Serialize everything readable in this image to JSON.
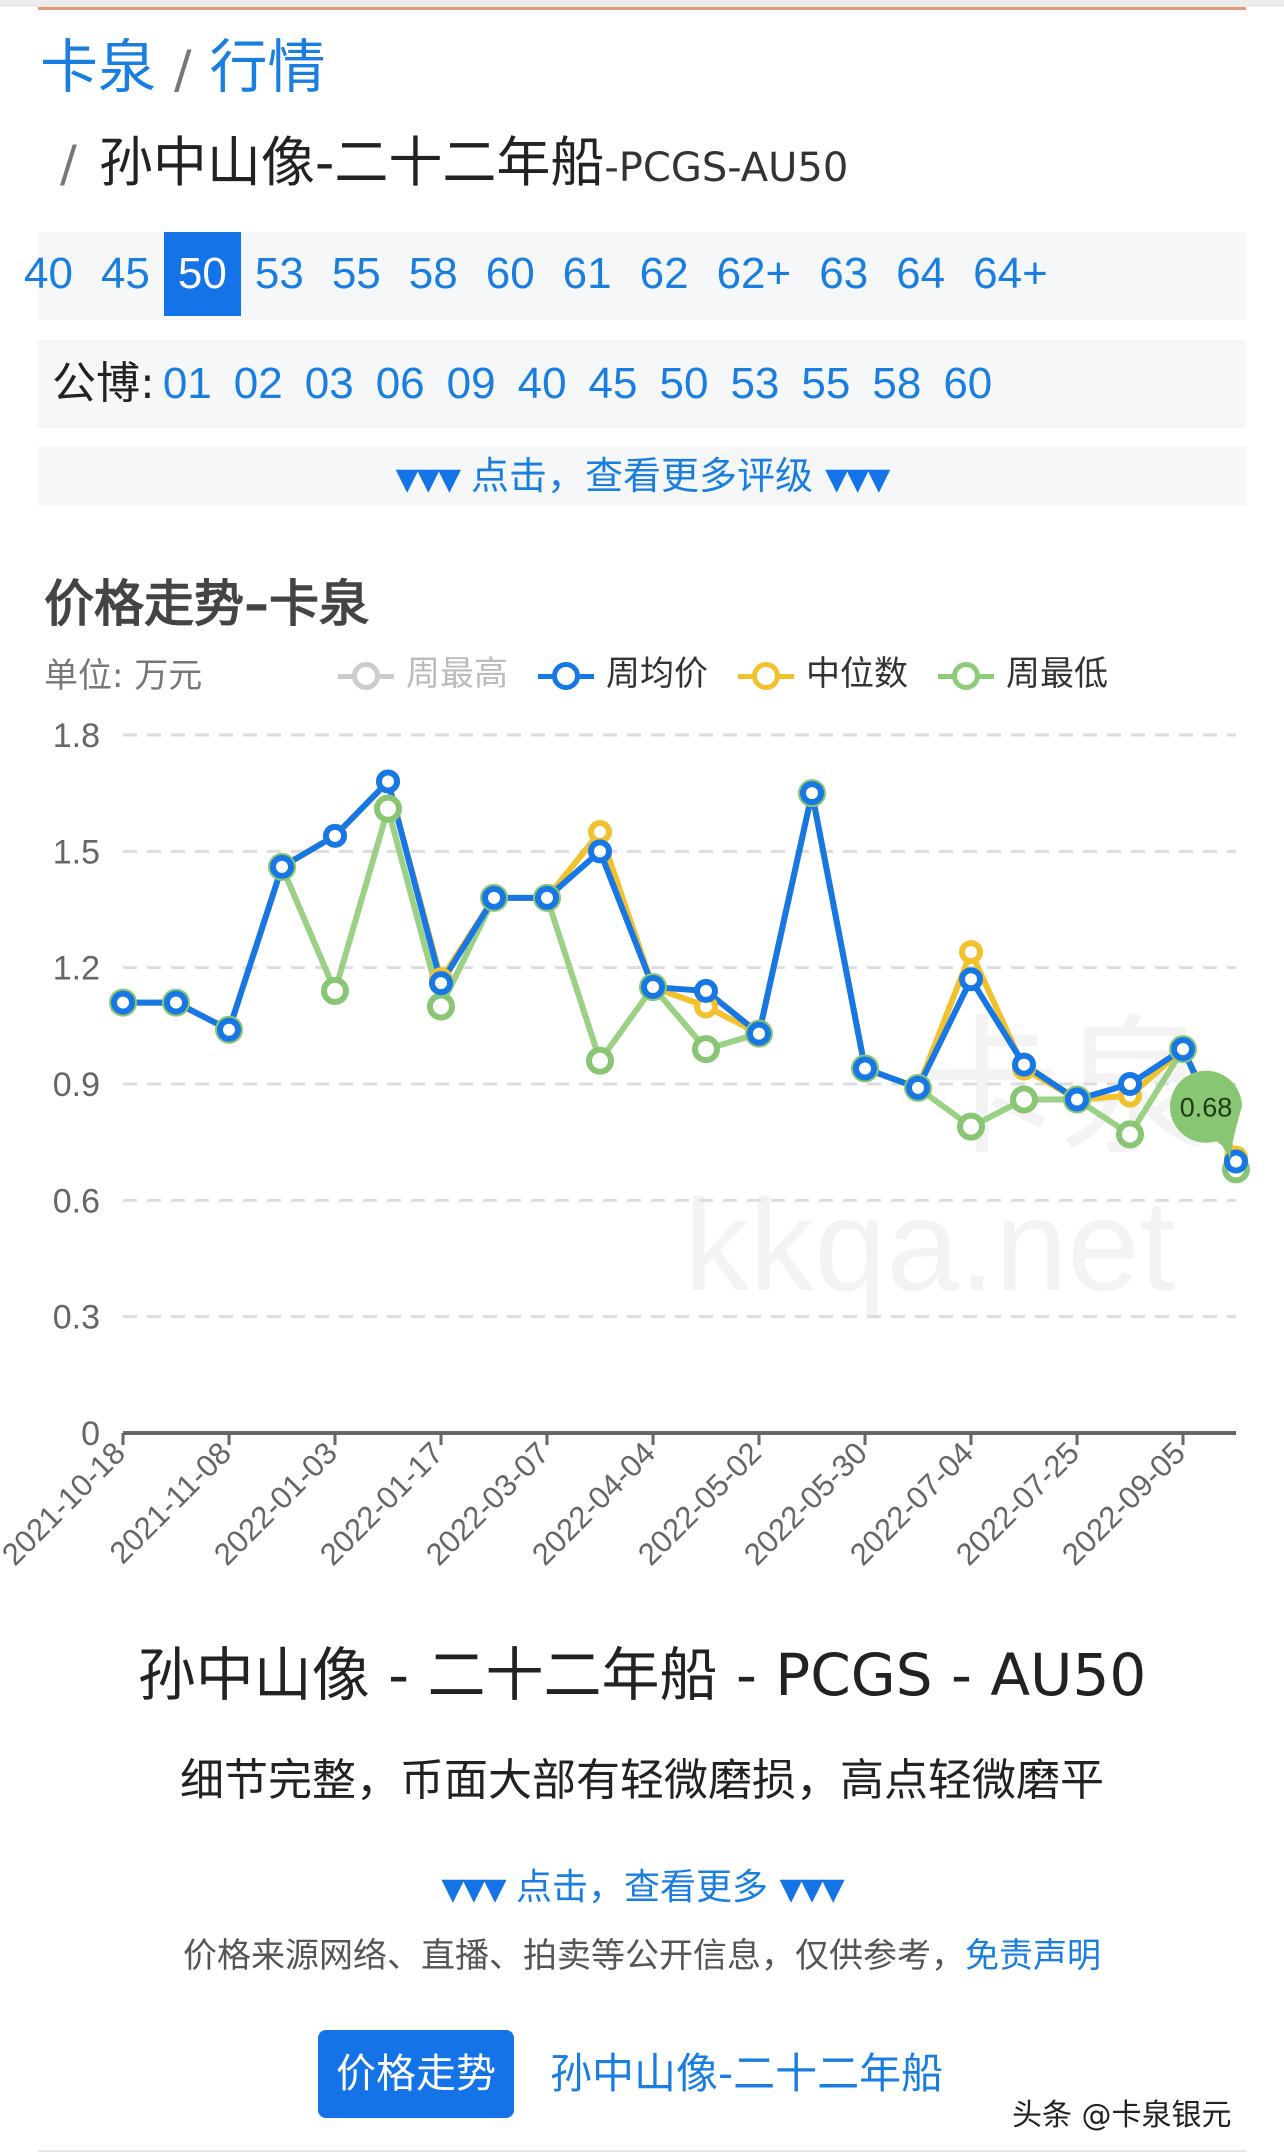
{
  "breadcrumb": {
    "root": "卡泉",
    "section": "行情",
    "separator": "/",
    "item": "孙中山像-二十二年船",
    "item_suffix": "-PCGS-AU50"
  },
  "grades": {
    "items": [
      "40",
      "45",
      "50",
      "53",
      "55",
      "58",
      "60",
      "61",
      "62",
      "62+",
      "63",
      "64",
      "64+"
    ],
    "active": "50"
  },
  "gongbo": {
    "label": "公博:",
    "items": [
      "01",
      "02",
      "03",
      "06",
      "09",
      "40",
      "45",
      "50",
      "53",
      "55",
      "58",
      "60"
    ]
  },
  "more_grades": {
    "arrows": "▼▼▼",
    "label": "点击，查看更多评级"
  },
  "chart_header": {
    "title": "价格走势–卡泉",
    "unit": "单位: 万元"
  },
  "legend": [
    {
      "name": "周最高",
      "color": "#cccccc",
      "dim": true
    },
    {
      "name": "周均价",
      "color": "#1677e5",
      "dim": false
    },
    {
      "name": "中位数",
      "color": "#f2c12e",
      "dim": false
    },
    {
      "name": "周最低",
      "color": "#8fcc77",
      "dim": false
    }
  ],
  "chart_data": {
    "type": "line",
    "title": "价格走势–卡泉",
    "ylabel": "单位: 万元",
    "ylim": [
      0,
      1.8
    ],
    "yticks": [
      "0",
      "0.3",
      "0.6",
      "0.9",
      "1.2",
      "1.5",
      "1.8"
    ],
    "grid": "dashed horizontal",
    "legend_position": "top",
    "xtick_labels": [
      "2021-10-18",
      "2021-11-08",
      "2022-01-03",
      "2022-01-17",
      "2022-03-07",
      "2022-04-04",
      "2022-05-02",
      "2022-05-30",
      "2022-07-04",
      "2022-07-25",
      "2022-09-05"
    ],
    "n_points": 22,
    "series": [
      {
        "name": "周均价",
        "color": "#1677e5",
        "values": [
          1.11,
          1.11,
          1.04,
          1.46,
          1.54,
          1.68,
          1.16,
          1.38,
          1.38,
          1.5,
          1.15,
          1.14,
          1.03,
          1.65,
          0.94,
          0.89,
          1.17,
          0.95,
          0.86,
          0.9,
          0.99,
          0.7
        ]
      },
      {
        "name": "中位数",
        "color": "#f2c12e",
        "values": [
          1.11,
          1.11,
          1.04,
          1.46,
          1.54,
          1.68,
          1.17,
          1.38,
          1.38,
          1.55,
          1.15,
          1.1,
          1.03,
          1.65,
          0.94,
          0.89,
          1.24,
          0.94,
          0.86,
          0.87,
          0.99,
          0.71
        ]
      },
      {
        "name": "周最低",
        "color": "#8fcc77",
        "values": [
          1.11,
          1.11,
          1.04,
          1.46,
          1.14,
          1.61,
          1.1,
          1.38,
          1.38,
          0.96,
          1.15,
          0.99,
          1.03,
          1.65,
          0.94,
          0.89,
          0.79,
          0.86,
          0.86,
          0.77,
          0.99,
          0.68
        ]
      }
    ],
    "annotation": {
      "label": "0.68",
      "series": "周最低",
      "index": 21
    },
    "watermark": [
      "卡泉",
      "kkqa.net"
    ]
  },
  "product": {
    "title": "孙中山像 - 二十二年船 - PCGS - AU50",
    "description": "细节完整，币面大部有轻微磨损，高点轻微磨平"
  },
  "more": {
    "arrows": "▼▼▼",
    "label": "点击，查看更多"
  },
  "disclaimer": {
    "text": "价格来源网络、直播、拍卖等公开信息，仅供参考，",
    "link": "免责声明"
  },
  "tabs": {
    "active": "价格走势",
    "link": "孙中山像-二十二年船"
  },
  "watermark": "头条 @卡泉银元"
}
